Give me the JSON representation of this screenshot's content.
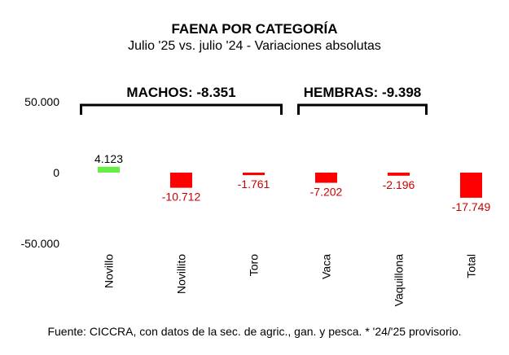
{
  "title": "FAENA POR CATEGORÍA",
  "subtitle": "Julio '25 vs. julio '24 - Variaciones absolutas",
  "source": "Fuente: CICCRA, con datos de la sec. de agric., gan. y pesca. * '24/'25 provisorio.",
  "colors": {
    "positive": "#66ee44",
    "negative": "#ff0000",
    "positive_label": "#000000",
    "negative_label": "#cc0000"
  },
  "chart_data": {
    "type": "bar",
    "categories": [
      "Novillo",
      "Novillito",
      "Toro",
      "Vaca",
      "Vaquillona",
      "Total"
    ],
    "values": [
      4123,
      -10712,
      -1761,
      -7202,
      -2196,
      -17749
    ],
    "data_labels": [
      "4.123",
      "-10.712",
      "-1.761",
      "-7.202",
      "-2.196",
      "-17.749"
    ],
    "ylim": [
      -50000,
      50000
    ],
    "yticks": [
      50000,
      0,
      -50000
    ],
    "ytick_labels": [
      "50.000",
      "0",
      "-50.000"
    ],
    "grid": false,
    "legend": "none",
    "groups": [
      {
        "label": "MACHOS: -8.351",
        "from": 0,
        "to": 2
      },
      {
        "label": "HEMBRAS: -9.398",
        "from": 3,
        "to": 4
      }
    ]
  }
}
